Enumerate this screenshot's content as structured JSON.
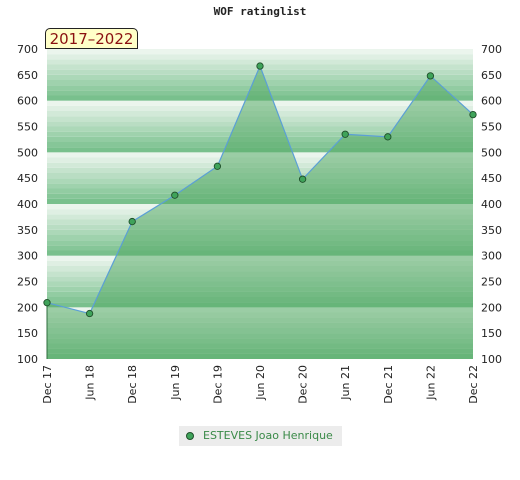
{
  "chart_data": {
    "type": "area",
    "title": "WOF ratinglist",
    "period_label": "2017–2022",
    "x": [
      "Dec 17",
      "Jun 18",
      "Dec 18",
      "Jun 19",
      "Dec 19",
      "Jun 20",
      "Dec 20",
      "Jun 21",
      "Dec 21",
      "Jun 22",
      "Dec 22"
    ],
    "series": [
      {
        "name": "ESTEVES Joao Henrique",
        "values": [
          209,
          188,
          366,
          417,
          473,
          667,
          448,
          535,
          530,
          648,
          573
        ],
        "color": "#3fa35a"
      }
    ],
    "ylim": [
      100,
      700
    ],
    "y_ticks": [
      100,
      150,
      200,
      250,
      300,
      350,
      400,
      450,
      500,
      550,
      600,
      650,
      700
    ],
    "y_axis_both_sides": true,
    "grid": true,
    "legend_position": "bottom-center",
    "colors": {
      "line": "#5b9fd6",
      "area": "#5aab6a",
      "marker": "#3fa35a",
      "band_dark": "#79c08d",
      "band_light": "#f2f8f3",
      "badge_text": "#8a1010",
      "badge_bg": "#ffffc8"
    }
  }
}
